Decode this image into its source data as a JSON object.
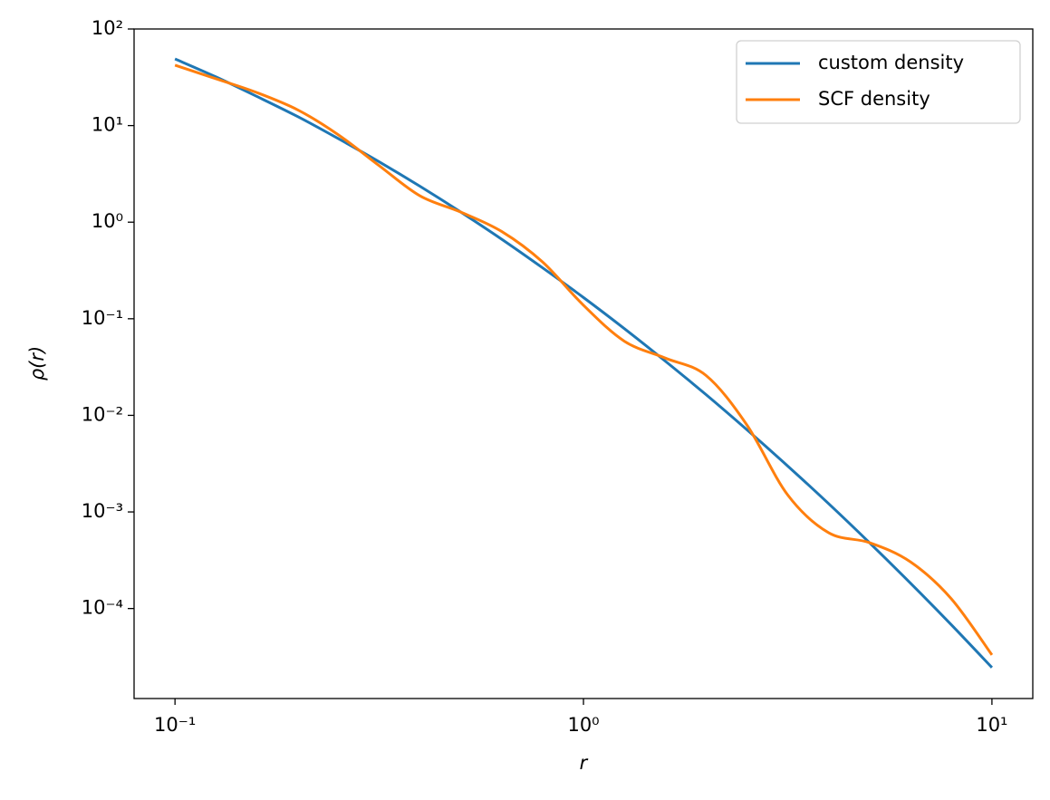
{
  "chart_data": {
    "type": "line",
    "xlabel": "r",
    "ylabel": "ρ(r)",
    "x": [
      0.1,
      0.126,
      0.158,
      0.2,
      0.251,
      0.316,
      0.398,
      0.501,
      0.631,
      0.794,
      1,
      1.259,
      1.585,
      1.995,
      2.512,
      3.162,
      3.981,
      5.012,
      6.31,
      7.943,
      10
    ],
    "series": [
      {
        "name": "custom density",
        "color": "#1f77b4",
        "values": [
          48.98,
          31.9,
          20.2,
          12.35,
          7.33,
          4.22,
          2.35,
          1.27,
          0.665,
          0.337,
          0.166,
          0.0791,
          0.0365,
          0.0164,
          0.0071,
          0.00299,
          0.00122,
          0.000481,
          0.000184,
          6.83e-05,
          2.45e-05
        ]
      },
      {
        "name": "SCF density",
        "color": "#ff7f0e",
        "values": [
          42.2,
          30.5,
          22.1,
          14.5,
          8.04,
          3.85,
          1.87,
          1.27,
          0.8,
          0.387,
          0.138,
          0.0586,
          0.0392,
          0.0259,
          0.00796,
          0.0015,
          0.00061,
          0.000481,
          0.000305,
          0.000127,
          3.31e-05
        ]
      }
    ],
    "xscale": "log",
    "yscale": "log",
    "xlim": [
      0.0794,
      12.59
    ],
    "ylim": [
      1.17e-05,
      100
    ],
    "xticks": [
      {
        "value": 0.1,
        "label": "10⁻¹"
      },
      {
        "value": 1,
        "label": "10⁰"
      },
      {
        "value": 10,
        "label": "10¹"
      }
    ],
    "yticks": [
      {
        "value": 0.0001,
        "label": "10⁻⁴"
      },
      {
        "value": 0.001,
        "label": "10⁻³"
      },
      {
        "value": 0.01,
        "label": "10⁻²"
      },
      {
        "value": 0.1,
        "label": "10⁻¹"
      },
      {
        "value": 1,
        "label": "10⁰"
      },
      {
        "value": 10,
        "label": "10¹"
      },
      {
        "value": 100,
        "label": "10²"
      }
    ],
    "grid": false,
    "legend": "upper right"
  }
}
